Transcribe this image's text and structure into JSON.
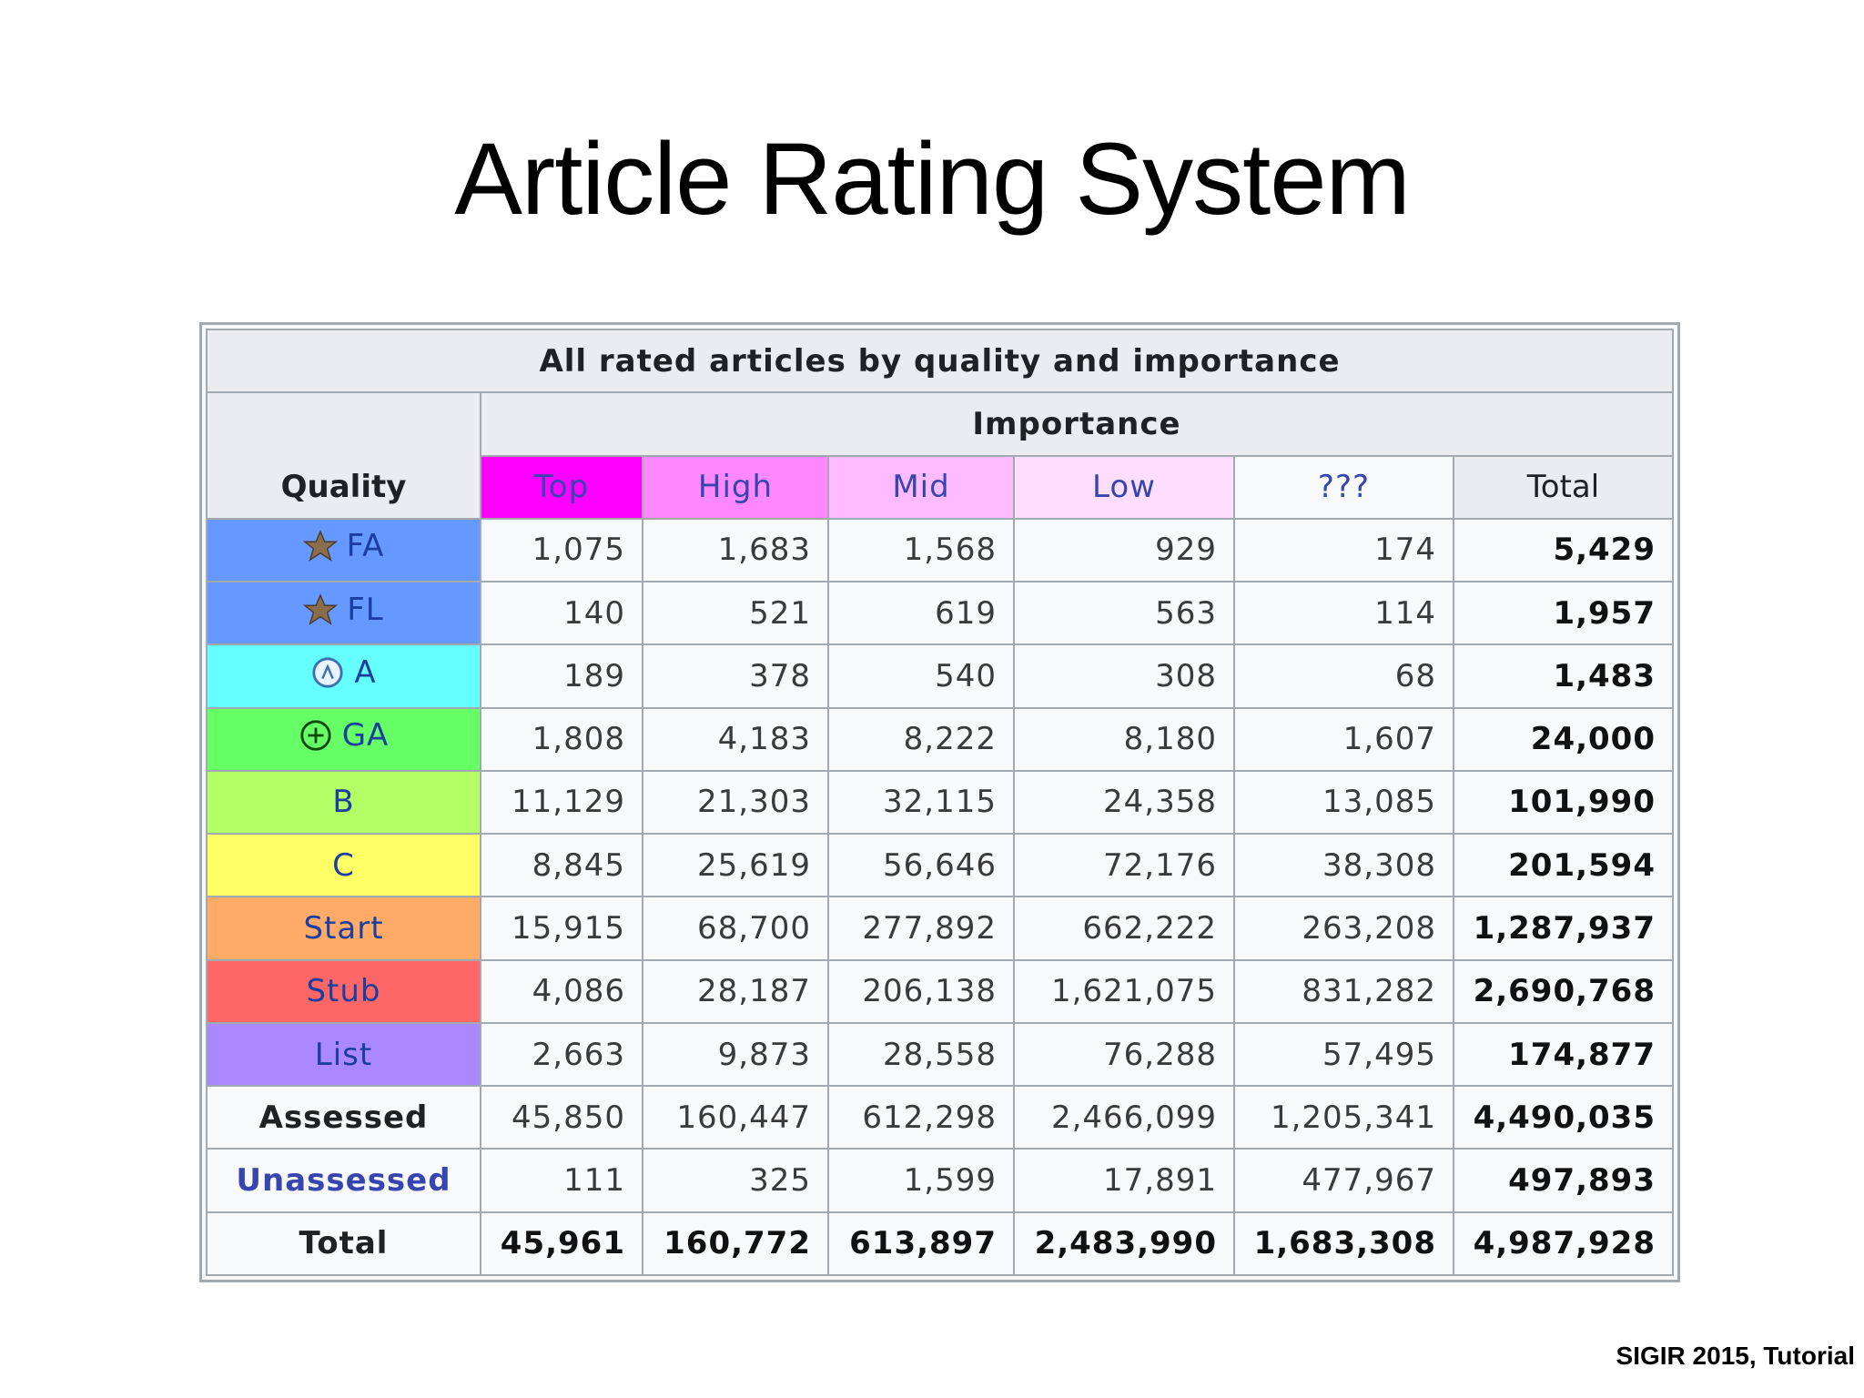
{
  "slide": {
    "title": "Article Rating System",
    "footer": "SIGIR 2015, Tutorial"
  },
  "table": {
    "caption": "All rated articles by quality and importance",
    "importance_label": "Importance",
    "quality_label": "Quality",
    "total_label": "Total",
    "importance_columns": [
      {
        "label": "Top",
        "color": "#ff00ff"
      },
      {
        "label": "High",
        "color": "#ff88ff"
      },
      {
        "label": "Mid",
        "color": "#ffbbff"
      },
      {
        "label": "Low",
        "color": "#ffddff"
      },
      {
        "label": "???",
        "color": "#f8f9fa"
      }
    ],
    "rows": [
      {
        "quality": "FA",
        "icon": "featured-star-icon",
        "color": "#6699ff",
        "values": [
          "1,075",
          "1,683",
          "1,568",
          "929",
          "174"
        ],
        "total": "5,429"
      },
      {
        "quality": "FL",
        "icon": "featured-star-icon",
        "color": "#6699ff",
        "values": [
          "140",
          "521",
          "619",
          "563",
          "114"
        ],
        "total": "1,957"
      },
      {
        "quality": "A",
        "icon": "a-class-icon",
        "color": "#66ffff",
        "values": [
          "189",
          "378",
          "540",
          "308",
          "68"
        ],
        "total": "1,483"
      },
      {
        "quality": "GA",
        "icon": "good-article-plus-icon",
        "color": "#66ff66",
        "values": [
          "1,808",
          "4,183",
          "8,222",
          "8,180",
          "1,607"
        ],
        "total": "24,000"
      },
      {
        "quality": "B",
        "icon": "",
        "color": "#b2ff66",
        "values": [
          "11,129",
          "21,303",
          "32,115",
          "24,358",
          "13,085"
        ],
        "total": "101,990"
      },
      {
        "quality": "C",
        "icon": "",
        "color": "#ffff66",
        "values": [
          "8,845",
          "25,619",
          "56,646",
          "72,176",
          "38,308"
        ],
        "total": "201,594"
      },
      {
        "quality": "Start",
        "icon": "",
        "color": "#ffaa66",
        "values": [
          "15,915",
          "68,700",
          "277,892",
          "662,222",
          "263,208"
        ],
        "total": "1,287,937"
      },
      {
        "quality": "Stub",
        "icon": "",
        "color": "#ff6666",
        "values": [
          "4,086",
          "28,187",
          "206,138",
          "1,621,075",
          "831,282"
        ],
        "total": "2,690,768"
      },
      {
        "quality": "List",
        "icon": "",
        "color": "#aa88ff",
        "values": [
          "2,663",
          "9,873",
          "28,558",
          "76,288",
          "57,495"
        ],
        "total": "174,877"
      }
    ],
    "assessed": {
      "label": "Assessed",
      "values": [
        "45,850",
        "160,447",
        "612,298",
        "2,466,099",
        "1,205,341"
      ],
      "total": "4,490,035"
    },
    "unassessed": {
      "label": "Unassessed",
      "values": [
        "111",
        "325",
        "1,599",
        "17,891",
        "477,967"
      ],
      "total": "497,893"
    },
    "grand_total": {
      "label": "Total",
      "values": [
        "45,961",
        "160,772",
        "613,897",
        "2,483,990",
        "1,683,308"
      ],
      "total": "4,987,928"
    }
  }
}
